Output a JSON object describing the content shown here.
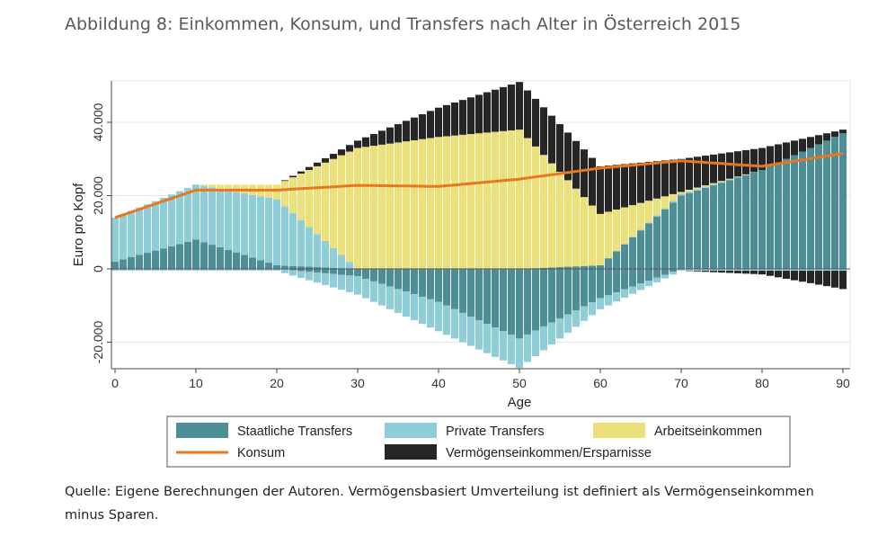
{
  "title": "Abbildung 8: Einkommen, Konsum, und Transfers nach Alter in Österreich 2015",
  "source": "Quelle: Eigene Berechnungen der Autoren. Vermögensbasiert Umverteilung ist definiert als Vermögenseinkommen minus Sparen.",
  "chart_data": {
    "type": "bar",
    "stacked": true,
    "xlabel": "Age",
    "ylabel": "Euro pro Kopf",
    "xlim": [
      0,
      90
    ],
    "ylim": [
      -27000,
      51000
    ],
    "xticks": [
      0,
      10,
      20,
      30,
      40,
      50,
      60,
      70,
      80,
      90
    ],
    "xtick_labels": [
      "0",
      "10",
      "20",
      "30",
      "40",
      "50",
      "60",
      "70",
      "80",
      "90"
    ],
    "yticks": [
      -20000,
      0,
      20000,
      40000
    ],
    "ytick_labels": [
      "-20.000",
      "0",
      "20.000",
      "40.000"
    ],
    "grid": "horizontal",
    "legend": "bottom",
    "colors": {
      "staatliche": "#4e8e97",
      "private": "#8fcdd8",
      "arbeit": "#ece07b",
      "vermoegen": "#262626",
      "konsum": "#e8771e"
    },
    "x": [
      0,
      10,
      20,
      30,
      40,
      50,
      60,
      70,
      80,
      90
    ],
    "series": [
      {
        "name": "Staatliche Transfers",
        "key": "staatliche",
        "pos": [
          2000,
          8000,
          1000,
          0,
          0,
          0,
          1000,
          20000,
          27000,
          37000
        ],
        "neg": [
          0,
          0,
          0,
          -2000,
          -9000,
          -19000,
          -8000,
          0,
          0,
          0
        ]
      },
      {
        "name": "Private Transfers",
        "key": "private",
        "pos": [
          12000,
          15000,
          18000,
          0,
          0,
          0,
          0,
          500,
          0,
          0
        ],
        "neg": [
          -500,
          -500,
          -500,
          -5000,
          -8000,
          -8000,
          -3000,
          -500,
          -500,
          -500
        ]
      },
      {
        "name": "Arbeitseinkommen",
        "key": "arbeit",
        "pos": [
          0,
          0,
          4000,
          33000,
          36000,
          38000,
          14000,
          500,
          0,
          0
        ],
        "neg": [
          0,
          0,
          0,
          0,
          0,
          0,
          0,
          0,
          0,
          0
        ]
      },
      {
        "name": "Vermögenseinkommen/Ersparnisse",
        "key": "vermoegen",
        "pos": [
          0,
          0,
          0,
          2000,
          8000,
          13000,
          13000,
          9000,
          6000,
          1000
        ],
        "neg": [
          0,
          0,
          0,
          0,
          0,
          0,
          0,
          0,
          -1000,
          -5000
        ]
      },
      {
        "name": "Konsum",
        "key": "konsum",
        "type": "line",
        "values": [
          14000,
          21500,
          21500,
          22800,
          22500,
          24500,
          27500,
          29500,
          28000,
          31500
        ]
      }
    ]
  }
}
